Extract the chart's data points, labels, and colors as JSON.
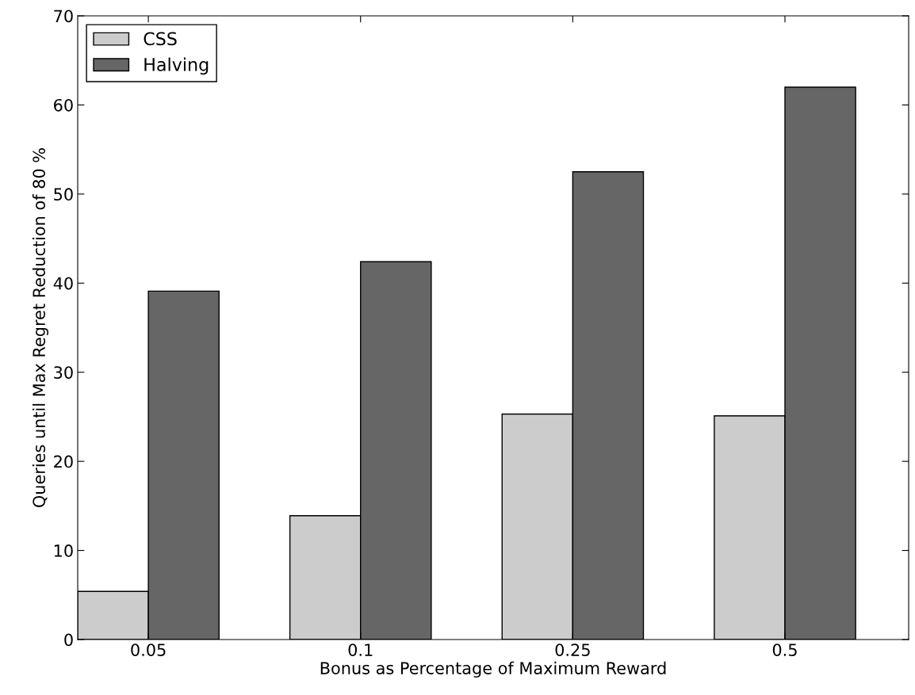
{
  "chart_data": {
    "type": "bar",
    "xlabel": "Bonus as Percentage of Maximum Reward",
    "ylabel": "Queries until Max Regret Reduction of 80 %",
    "categories": [
      "0.05",
      "0.1",
      "0.25",
      "0.5"
    ],
    "series": [
      {
        "name": "CSS",
        "color": "#cccccc",
        "values": [
          5.4,
          13.9,
          25.3,
          25.1
        ]
      },
      {
        "name": "Halving",
        "color": "#666666",
        "values": [
          39.1,
          42.4,
          52.5,
          62.0
        ]
      }
    ],
    "ylim": [
      0,
      70
    ],
    "yticks": [
      0,
      10,
      20,
      30,
      40,
      50,
      60,
      70
    ],
    "legend": "top left",
    "grid": false
  }
}
